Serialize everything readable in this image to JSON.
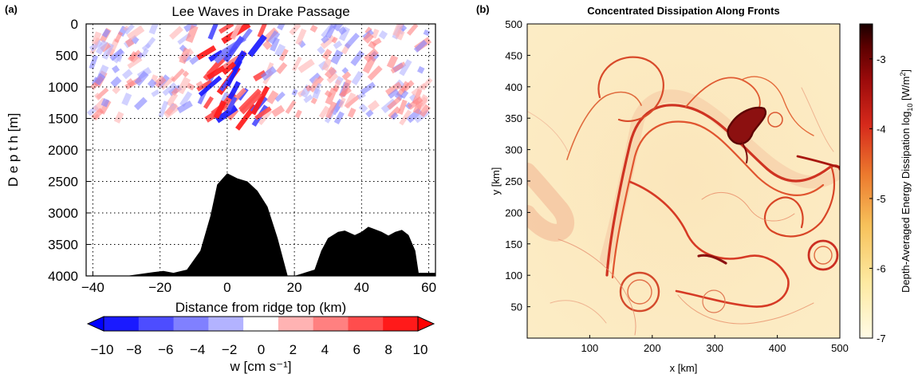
{
  "chart_data": [
    {
      "panel_label": "(a)",
      "type": "heatmap",
      "title": "Lee Waves in Drake Passage",
      "xlabel": "Distance from ridge top (km)",
      "ylabel": "D e p t h [m]",
      "xlim": [
        -42,
        62
      ],
      "ylim": [
        4000,
        0
      ],
      "xticks": [
        -40,
        -20,
        0,
        20,
        40,
        60
      ],
      "yticks": [
        0,
        500,
        1000,
        1500,
        2000,
        2500,
        3000,
        3500,
        4000
      ],
      "grid": true,
      "colorbar": {
        "label": "w [cm s⁻¹]",
        "ticks": [
          "−10",
          "−8",
          "−6",
          "−4",
          "−2",
          "0",
          "2",
          "4",
          "6",
          "8",
          "10"
        ],
        "range": [
          -10,
          10
        ],
        "extend": "both",
        "colors": [
          "#1a1aff",
          "#4d4dff",
          "#8080ff",
          "#b3b3ff",
          "#ffffff",
          "#ffb3b3",
          "#ff8080",
          "#ff4d4d",
          "#ff1a1a"
        ]
      },
      "data_depth_max": 1500,
      "topography": {
        "fill": "#000000",
        "x": [
          -42,
          -30,
          -22,
          -19,
          -16,
          -12,
          -8,
          -5,
          -3,
          0,
          3,
          6,
          9,
          12,
          15,
          17,
          18,
          20,
          26,
          28,
          30,
          33,
          35,
          38,
          40,
          42,
          44,
          46,
          48,
          50,
          52,
          54,
          56,
          57,
          62
        ],
        "depth": [
          4000,
          4000,
          3940,
          3920,
          3950,
          3900,
          3600,
          3050,
          2550,
          2370,
          2450,
          2500,
          2650,
          2900,
          3400,
          3800,
          4000,
          4000,
          3900,
          3600,
          3400,
          3300,
          3280,
          3350,
          3300,
          3220,
          3260,
          3300,
          3360,
          3300,
          3270,
          3350,
          3600,
          3950,
          3950
        ]
      }
    },
    {
      "panel_label": "(b)",
      "type": "heatmap",
      "title": "Concentrated Dissipation Along Fronts",
      "xlabel": "x [km]",
      "ylabel": "y [km]",
      "xlim": [
        0,
        500
      ],
      "ylim": [
        0,
        500
      ],
      "xticks": [
        100,
        200,
        300,
        400,
        500
      ],
      "yticks": [
        50,
        100,
        150,
        200,
        250,
        300,
        350,
        400,
        450,
        500
      ],
      "colorbar": {
        "label": "Depth-Averaged Energy Dissipation log",
        "label_sub": "10",
        "label_unit": " [W/m",
        "label_sup": "2",
        "label_end": "]",
        "ticks": [
          "-3",
          "-4",
          "-5",
          "-6",
          "-7"
        ],
        "range": [
          -7,
          -2.5
        ],
        "colors": [
          "#fffbe6",
          "#fde9a0",
          "#f7c15a",
          "#ec7a2e",
          "#d6291b",
          "#9c0b0b",
          "#5a0000",
          "#1a0000"
        ]
      }
    }
  ]
}
